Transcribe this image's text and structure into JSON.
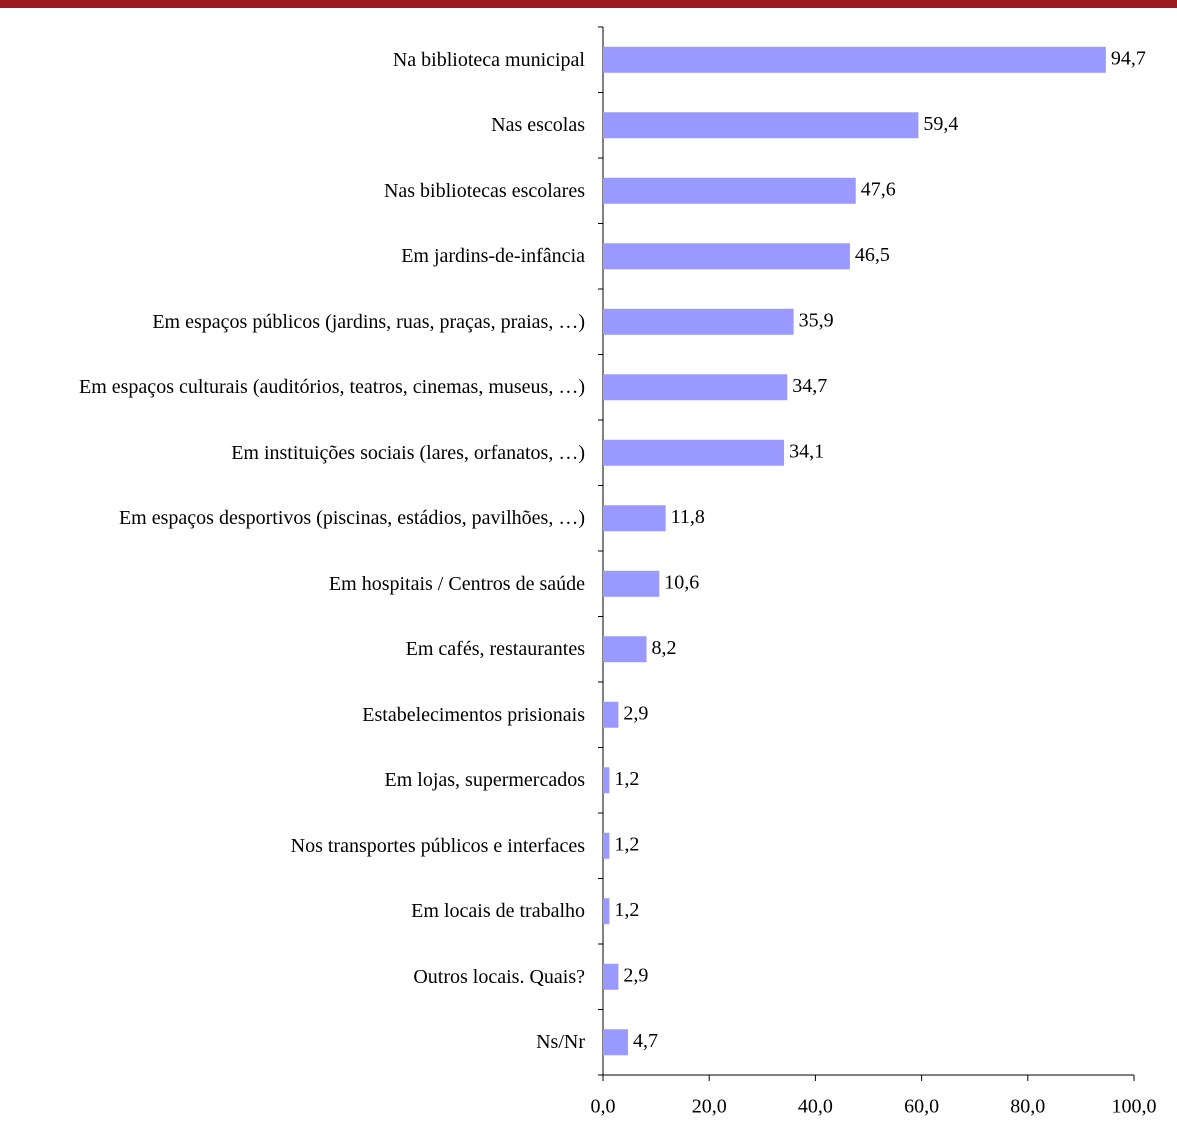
{
  "chart_data": {
    "type": "bar",
    "orientation": "horizontal",
    "categories": [
      "Na biblioteca municipal",
      "Nas escolas",
      "Nas bibliotecas escolares",
      "Em jardins-de-infância",
      "Em espaços públicos (jardins, ruas, praças, praias, …)",
      "Em espaços culturais (auditórios, teatros, cinemas, museus, …)",
      "Em instituições sociais (lares, orfanatos, …)",
      "Em espaços desportivos (piscinas, estádios, pavilhões, …)",
      "Em hospitais / Centros de saúde",
      "Em cafés, restaurantes",
      "Estabelecimentos prisionais",
      "Em lojas, supermercados",
      "Nos transportes públicos e interfaces",
      "Em locais de trabalho",
      "Outros locais. Quais?",
      "Ns/Nr"
    ],
    "values": [
      94.7,
      59.4,
      47.6,
      46.5,
      35.9,
      34.7,
      34.1,
      11.8,
      10.6,
      8.2,
      2.9,
      1.2,
      1.2,
      1.2,
      2.9,
      4.7
    ],
    "value_labels": [
      "94,7",
      "59,4",
      "47,6",
      "46,5",
      "35,9",
      "34,7",
      "34,1",
      "11,8",
      "10,6",
      "8,2",
      "2,9",
      "1,2",
      "1,2",
      "1,2",
      "2,9",
      "4,7"
    ],
    "color": "#9999ff",
    "xlim": [
      0,
      100
    ],
    "xticks": [
      {
        "value": 0,
        "label": "0,0"
      },
      {
        "value": 20,
        "label": "20,0"
      },
      {
        "value": 40,
        "label": "40,0"
      },
      {
        "value": 60,
        "label": "60,0"
      },
      {
        "value": 80,
        "label": "80,0"
      },
      {
        "value": 100,
        "label": "100,0"
      }
    ]
  }
}
